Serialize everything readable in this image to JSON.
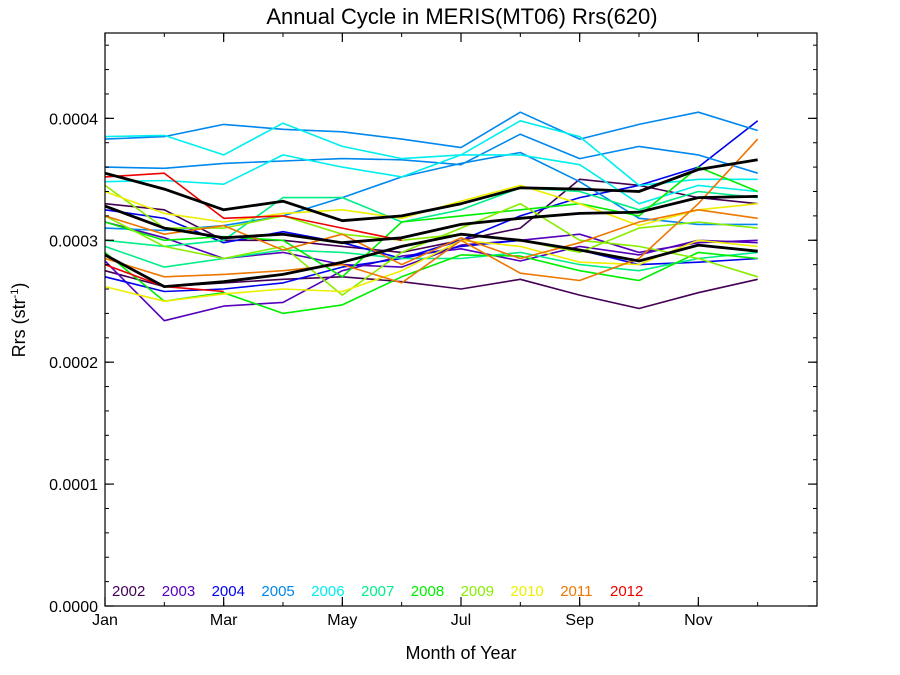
{
  "chart_data": {
    "type": "line",
    "title": "Annual Cycle in MERIS(MT06) Rrs(620)",
    "xlabel": "Month of Year",
    "ylabel_main": "Rrs (str",
    "ylabel_sup": "-1",
    "ylabel_close": ")",
    "xlim": [
      1,
      13
    ],
    "ylim": [
      0,
      0.00047
    ],
    "x_ticks": [
      {
        "value": 1,
        "label": "Jan"
      },
      {
        "value": 3,
        "label": "Mar"
      },
      {
        "value": 5,
        "label": "May"
      },
      {
        "value": 7,
        "label": "Jul"
      },
      {
        "value": 9,
        "label": "Sep"
      },
      {
        "value": 11,
        "label": "Nov"
      }
    ],
    "y_ticks": [
      {
        "value": 0,
        "label": "0.0000"
      },
      {
        "value": 0.0001,
        "label": "0.0001"
      },
      {
        "value": 0.0002,
        "label": "0.0002"
      },
      {
        "value": 0.0003,
        "label": "0.0003"
      },
      {
        "value": 0.0004,
        "label": "0.0004"
      }
    ],
    "legend_position": "bottom-left",
    "legend": [
      {
        "label": "2002",
        "color": "#440055"
      },
      {
        "label": "2003",
        "color": "#5500bb"
      },
      {
        "label": "2004",
        "color": "#0000ee"
      },
      {
        "label": "2005",
        "color": "#0088ee"
      },
      {
        "label": "2006",
        "color": "#00eeee"
      },
      {
        "label": "2007",
        "color": "#00ee88"
      },
      {
        "label": "2008",
        "color": "#00ee00"
      },
      {
        "label": "2009",
        "color": "#88ee00"
      },
      {
        "label": "2010",
        "color": "#eeee00"
      },
      {
        "label": "2011",
        "color": "#ee7700"
      },
      {
        "label": "2012",
        "color": "#ee0000"
      }
    ],
    "months": [
      1,
      2,
      3,
      4,
      5,
      6,
      7,
      8,
      9,
      10,
      11,
      12
    ],
    "series": [
      {
        "color": "#440055",
        "values": [
          0.000275,
          0.000262,
          0.000265,
          0.000268,
          0.00027,
          0.000266,
          0.00026,
          0.000268,
          0.000255,
          0.000244,
          0.000257,
          0.000268
        ]
      },
      {
        "color": "#440055",
        "values": [
          0.00033,
          0.000325,
          0.0003,
          0.0003,
          0.000295,
          0.00029,
          0.0003,
          0.00031,
          0.00035,
          0.000345,
          0.000335,
          0.00033
        ]
      },
      {
        "color": "#5500bb",
        "values": [
          0.000283,
          0.000234,
          0.000246,
          0.000249,
          0.000275,
          0.000287,
          0.000293,
          0.000283,
          0.000295,
          0.000288,
          0.0003,
          0.000298
        ]
      },
      {
        "color": "#5500bb",
        "values": [
          0.000315,
          0.000302,
          0.000285,
          0.00029,
          0.00028,
          0.000278,
          0.000296,
          0.0003,
          0.000305,
          0.00029,
          0.000298,
          0.0003
        ]
      },
      {
        "color": "#0000ee",
        "values": [
          0.000325,
          0.000318,
          0.000298,
          0.000307,
          0.000298,
          0.000285,
          0.0003,
          0.00032,
          0.000335,
          0.000345,
          0.00036,
          0.000398
        ]
      },
      {
        "color": "#0000ee",
        "values": [
          0.00027,
          0.000258,
          0.00026,
          0.000265,
          0.000278,
          0.000285,
          0.000295,
          0.0003,
          0.000292,
          0.00028,
          0.000282,
          0.000285
        ]
      },
      {
        "color": "#0088ee",
        "values": [
          0.000383,
          0.000385,
          0.000395,
          0.000391,
          0.000389,
          0.000383,
          0.000376,
          0.000405,
          0.000383,
          0.000395,
          0.000405,
          0.00039
        ]
      },
      {
        "color": "#0088ee",
        "values": [
          0.00036,
          0.000359,
          0.000363,
          0.000365,
          0.000367,
          0.000366,
          0.000362,
          0.000387,
          0.000367,
          0.000377,
          0.00037,
          0.000355
        ]
      },
      {
        "color": "#0088ee",
        "values": [
          0.00031,
          0.000308,
          0.000312,
          0.00032,
          0.000335,
          0.000352,
          0.000363,
          0.000372,
          0.000348,
          0.000318,
          0.000313,
          0.000313
        ]
      },
      {
        "color": "#00eeee",
        "values": [
          0.000385,
          0.000386,
          0.00037,
          0.000396,
          0.000377,
          0.000367,
          0.00037,
          0.000398,
          0.000385,
          0.000345,
          0.00035,
          0.00035
        ]
      },
      {
        "color": "#00eeee",
        "values": [
          0.000348,
          0.000349,
          0.000346,
          0.00037,
          0.00036,
          0.000352,
          0.00037,
          0.00037,
          0.000362,
          0.00033,
          0.000345,
          0.00034
        ]
      },
      {
        "color": "#00ee88",
        "values": [
          0.0003,
          0.000295,
          0.0003,
          0.000335,
          0.000335,
          0.000315,
          0.000325,
          0.000343,
          0.00034,
          0.000325,
          0.00034,
          0.000335
        ]
      },
      {
        "color": "#00ee88",
        "values": [
          0.000295,
          0.000278,
          0.000285,
          0.000292,
          0.00029,
          0.000285,
          0.000285,
          0.00029,
          0.00028,
          0.000275,
          0.000285,
          0.00029
        ]
      },
      {
        "color": "#00ee00",
        "values": [
          0.00029,
          0.00025,
          0.000257,
          0.00024,
          0.000247,
          0.00027,
          0.000288,
          0.000287,
          0.000275,
          0.000267,
          0.00029,
          0.000285
        ]
      },
      {
        "color": "#00ee00",
        "values": [
          0.000315,
          0.0003,
          0.000303,
          0.0003,
          0.00027,
          0.000315,
          0.00032,
          0.000325,
          0.00033,
          0.00032,
          0.00036,
          0.00034
        ]
      },
      {
        "color": "#88ee00",
        "values": [
          0.00032,
          0.000295,
          0.000285,
          0.000295,
          0.000255,
          0.00029,
          0.00031,
          0.00033,
          0.0003,
          0.000295,
          0.000285,
          0.00027
        ]
      },
      {
        "color": "#88ee00",
        "values": [
          0.000345,
          0.00031,
          0.00031,
          0.00032,
          0.000305,
          0.0003,
          0.000305,
          0.0003,
          0.00029,
          0.00031,
          0.000315,
          0.00031
        ]
      },
      {
        "color": "#eeee00",
        "values": [
          0.000262,
          0.00025,
          0.000256,
          0.00026,
          0.000258,
          0.000275,
          0.0003,
          0.000295,
          0.000282,
          0.00028,
          0.0003,
          0.000295
        ]
      },
      {
        "color": "#eeee00",
        "values": [
          0.00034,
          0.000322,
          0.000315,
          0.000322,
          0.000325,
          0.000318,
          0.000332,
          0.000345,
          0.00033,
          0.000312,
          0.000325,
          0.00033
        ]
      },
      {
        "color": "#ee7700",
        "values": [
          0.000285,
          0.00027,
          0.000272,
          0.000275,
          0.00028,
          0.000265,
          0.0003,
          0.000273,
          0.000267,
          0.000285,
          0.00033,
          0.000383
        ]
      },
      {
        "color": "#ee7700",
        "values": [
          0.00032,
          0.000305,
          0.000312,
          0.000292,
          0.000305,
          0.00028,
          0.000302,
          0.000285,
          0.000298,
          0.000315,
          0.000325,
          0.000318
        ]
      },
      {
        "color": "#ee0000",
        "values": [
          0.000352,
          0.000355,
          0.000318,
          0.00032,
          0.00031,
          0.0003,
          null,
          null,
          null,
          null,
          null,
          null
        ]
      },
      {
        "color": "#ee0000",
        "values": [
          0.00028,
          0.000262,
          0.000258,
          null,
          null,
          null,
          null,
          null,
          null,
          null,
          null,
          null
        ]
      },
      {
        "color": "#000000",
        "bold": true,
        "values": [
          0.000355,
          0.000342,
          0.000325,
          0.000332,
          0.000316,
          0.00032,
          0.00033,
          0.000343,
          0.000342,
          0.00034,
          0.000358,
          0.000366
        ]
      },
      {
        "color": "#000000",
        "bold": true,
        "values": [
          0.000328,
          0.00031,
          0.000302,
          0.000305,
          0.000298,
          0.000302,
          0.000313,
          0.000318,
          0.000322,
          0.000323,
          0.000335,
          0.000336
        ]
      },
      {
        "color": "#000000",
        "bold": true,
        "values": [
          0.000288,
          0.000262,
          0.000266,
          0.000272,
          0.000282,
          0.000295,
          0.000305,
          0.0003,
          0.000292,
          0.000283,
          0.000296,
          0.000291
        ]
      }
    ]
  }
}
